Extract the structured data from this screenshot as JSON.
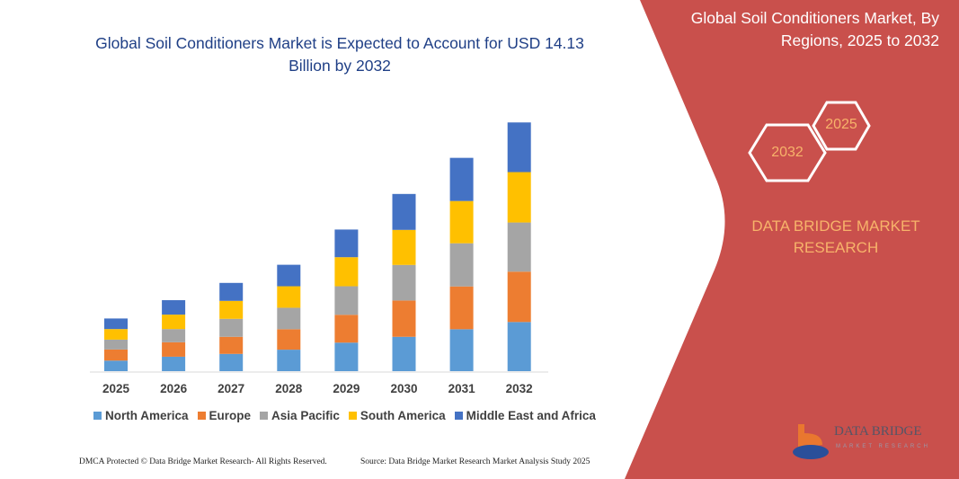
{
  "title": "Global Soil Conditioners Market is Expected to Account for USD 14.13 Billion by 2032",
  "side_panel": {
    "title": "Global Soil Conditioners Market, By Regions, 2025 to 2032",
    "hex_start": "2025",
    "hex_end": "2032",
    "brand": "DATA BRIDGE MARKET RESEARCH",
    "logo_text": "DATA BRIDGE",
    "logo_subtext": "MARKET RESEARCH",
    "panel_color": "#c9504c",
    "accent_color": "#f7b36a"
  },
  "footer": {
    "left": "DMCA Protected © Data Bridge Market Research- All Rights Reserved.",
    "right": "Source: Data Bridge Market Research Market Analysis Study 2025"
  },
  "chart_data": {
    "type": "bar",
    "stacked": true,
    "categories": [
      "2025",
      "2026",
      "2027",
      "2028",
      "2029",
      "2030",
      "2031",
      "2032"
    ],
    "series": [
      {
        "name": "North America",
        "color": "#5b9bd5",
        "values": [
          0.6,
          0.82,
          0.98,
          1.22,
          1.62,
          1.95,
          2.38,
          2.79
        ]
      },
      {
        "name": "Europe",
        "color": "#ed7d31",
        "values": [
          0.63,
          0.82,
          0.97,
          1.16,
          1.58,
          2.06,
          2.43,
          2.86
        ]
      },
      {
        "name": "Asia Pacific",
        "color": "#a5a5a5",
        "values": [
          0.56,
          0.75,
          1.02,
          1.22,
          1.62,
          2.02,
          2.45,
          2.79
        ]
      },
      {
        "name": "South America",
        "color": "#ffc000",
        "values": [
          0.6,
          0.82,
          1.02,
          1.22,
          1.65,
          1.99,
          2.4,
          2.86
        ]
      },
      {
        "name": "Middle East and Africa",
        "color": "#4472c4",
        "values": [
          0.6,
          0.82,
          1.02,
          1.22,
          1.57,
          2.04,
          2.45,
          2.82
        ]
      }
    ],
    "unit": "USD Billion",
    "y_axis_shown": false,
    "grid": false,
    "legend": "bottom"
  }
}
